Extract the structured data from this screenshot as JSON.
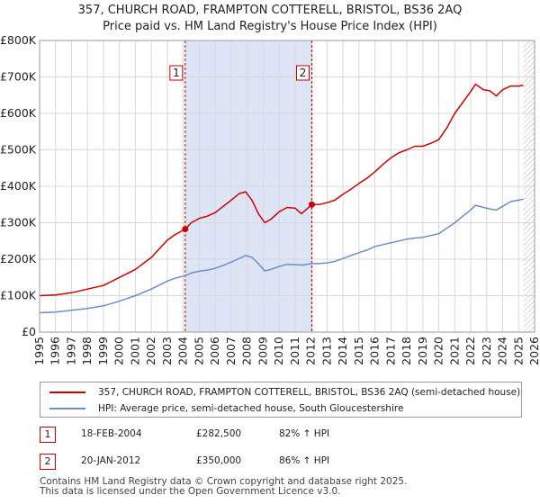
{
  "title": "357, CHURCH ROAD, FRAMPTON COTTERELL, BRISTOL, BS36 2AQ",
  "subtitle": "Price paid vs. HM Land Registry's House Price Index (HPI)",
  "chart_data": {
    "type": "line",
    "title": "357, CHURCH ROAD, FRAMPTON COTTERELL, BRISTOL, BS36 2AQ",
    "subtitle": "Price paid vs. HM Land Registry's House Price Index (HPI)",
    "xlabel": "",
    "ylabel": "",
    "xlim": [
      1995,
      2026
    ],
    "ylim": [
      0,
      800000
    ],
    "x_ticks": [
      1995,
      1996,
      1997,
      1998,
      1999,
      2000,
      2001,
      2002,
      2003,
      2004,
      2005,
      2006,
      2007,
      2008,
      2009,
      2010,
      2011,
      2012,
      2013,
      2014,
      2015,
      2016,
      2017,
      2018,
      2019,
      2020,
      2021,
      2022,
      2023,
      2024,
      2025,
      2026
    ],
    "y_ticks": [
      0,
      100000,
      200000,
      300000,
      400000,
      500000,
      600000,
      700000,
      800000
    ],
    "y_tick_labels": [
      "£0",
      "£100K",
      "£200K",
      "£300K",
      "£400K",
      "£500K",
      "£600K",
      "£700K",
      "£800K"
    ],
    "grid": true,
    "shaded_region": {
      "from": 2004.12,
      "to": 2012.05,
      "color": "#dde4f5"
    },
    "hatched_from": 2025.3,
    "markers": [
      {
        "label": "1",
        "x": 2004.12,
        "price": 282500
      },
      {
        "label": "2",
        "x": 2012.05,
        "price": 350000
      }
    ],
    "series": [
      {
        "name": "357, CHURCH ROAD, FRAMPTON COTTERELL, BRISTOL, BS36 2AQ (semi-detached house)",
        "color": "#cc0000",
        "points": [
          [
            1995,
            100000
          ],
          [
            1996,
            102000
          ],
          [
            1997,
            108000
          ],
          [
            1998,
            118000
          ],
          [
            1999,
            128000
          ],
          [
            2000,
            150000
          ],
          [
            2001,
            172000
          ],
          [
            2002,
            205000
          ],
          [
            2003,
            252000
          ],
          [
            2003.5,
            268000
          ],
          [
            2004.12,
            282500
          ],
          [
            2004.5,
            300000
          ],
          [
            2005,
            312000
          ],
          [
            2005.5,
            318000
          ],
          [
            2006,
            328000
          ],
          [
            2006.5,
            345000
          ],
          [
            2007,
            362000
          ],
          [
            2007.5,
            380000
          ],
          [
            2007.9,
            385000
          ],
          [
            2008.3,
            362000
          ],
          [
            2008.7,
            325000
          ],
          [
            2009.1,
            300000
          ],
          [
            2009.5,
            310000
          ],
          [
            2010,
            330000
          ],
          [
            2010.5,
            342000
          ],
          [
            2011,
            340000
          ],
          [
            2011.4,
            325000
          ],
          [
            2012.05,
            350000
          ],
          [
            2012.5,
            350000
          ],
          [
            2013,
            355000
          ],
          [
            2013.5,
            362000
          ],
          [
            2014,
            378000
          ],
          [
            2014.5,
            392000
          ],
          [
            2015,
            408000
          ],
          [
            2015.5,
            422000
          ],
          [
            2016,
            440000
          ],
          [
            2016.5,
            460000
          ],
          [
            2017,
            478000
          ],
          [
            2017.5,
            492000
          ],
          [
            2018,
            500000
          ],
          [
            2018.5,
            510000
          ],
          [
            2019,
            510000
          ],
          [
            2019.5,
            518000
          ],
          [
            2020,
            528000
          ],
          [
            2020.5,
            560000
          ],
          [
            2021,
            600000
          ],
          [
            2021.5,
            630000
          ],
          [
            2022,
            660000
          ],
          [
            2022.3,
            680000
          ],
          [
            2022.8,
            665000
          ],
          [
            2023.2,
            662000
          ],
          [
            2023.6,
            648000
          ],
          [
            2024,
            665000
          ],
          [
            2024.5,
            675000
          ],
          [
            2025,
            675000
          ],
          [
            2025.3,
            677000
          ]
        ]
      },
      {
        "name": "HPI: Average price, semi-detached house, South Gloucestershire",
        "color": "#6b8fc8",
        "points": [
          [
            1995,
            53000
          ],
          [
            1996,
            55000
          ],
          [
            1997,
            60000
          ],
          [
            1998,
            65000
          ],
          [
            1999,
            72000
          ],
          [
            2000,
            85000
          ],
          [
            2001,
            100000
          ],
          [
            2002,
            118000
          ],
          [
            2003,
            140000
          ],
          [
            2003.5,
            148000
          ],
          [
            2004.12,
            155000
          ],
          [
            2004.5,
            162000
          ],
          [
            2005,
            167000
          ],
          [
            2005.5,
            170000
          ],
          [
            2006,
            175000
          ],
          [
            2006.5,
            183000
          ],
          [
            2007,
            192000
          ],
          [
            2007.5,
            202000
          ],
          [
            2007.9,
            210000
          ],
          [
            2008.3,
            205000
          ],
          [
            2008.7,
            188000
          ],
          [
            2009.1,
            168000
          ],
          [
            2009.5,
            172000
          ],
          [
            2010,
            180000
          ],
          [
            2010.5,
            186000
          ],
          [
            2011,
            185000
          ],
          [
            2011.5,
            184000
          ],
          [
            2012.05,
            188000
          ],
          [
            2012.5,
            188000
          ],
          [
            2013,
            190000
          ],
          [
            2013.5,
            194000
          ],
          [
            2014,
            202000
          ],
          [
            2014.5,
            210000
          ],
          [
            2015,
            218000
          ],
          [
            2015.5,
            225000
          ],
          [
            2016,
            235000
          ],
          [
            2016.5,
            240000
          ],
          [
            2017,
            245000
          ],
          [
            2017.5,
            250000
          ],
          [
            2018,
            255000
          ],
          [
            2018.5,
            258000
          ],
          [
            2019,
            260000
          ],
          [
            2019.5,
            265000
          ],
          [
            2020,
            270000
          ],
          [
            2020.5,
            285000
          ],
          [
            2021,
            300000
          ],
          [
            2021.5,
            318000
          ],
          [
            2022,
            335000
          ],
          [
            2022.3,
            348000
          ],
          [
            2022.8,
            342000
          ],
          [
            2023.2,
            338000
          ],
          [
            2023.6,
            335000
          ],
          [
            2024,
            345000
          ],
          [
            2024.5,
            358000
          ],
          [
            2025,
            362000
          ],
          [
            2025.3,
            365000
          ]
        ]
      }
    ]
  },
  "legend": {
    "property_label": "357, CHURCH ROAD, FRAMPTON COTTERELL, BRISTOL, BS36 2AQ (semi-detached house)",
    "hpi_label": "HPI: Average price, semi-detached house, South Gloucestershire",
    "property_color": "#cc0000",
    "hpi_color": "#6b8fc8"
  },
  "transactions": [
    {
      "num": "1",
      "date": "18-FEB-2004",
      "price": "£282,500",
      "hpi": "82% ↑ HPI"
    },
    {
      "num": "2",
      "date": "20-JAN-2012",
      "price": "£350,000",
      "hpi": "86% ↑ HPI"
    }
  ],
  "footer": {
    "line1": "Contains HM Land Registry data © Crown copyright and database right 2025.",
    "line2": "This data is licensed under the Open Government Licence v3.0."
  }
}
